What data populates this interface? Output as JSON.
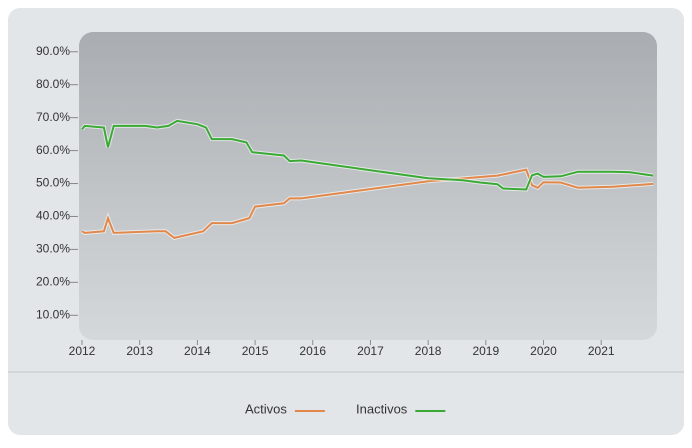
{
  "chart_data": {
    "type": "line",
    "xlim": [
      2012,
      2021.95
    ],
    "xticks": [
      2012,
      2013,
      2014,
      2015,
      2016,
      2017,
      2018,
      2019,
      2020,
      2021
    ],
    "ylim": [
      2.5,
      96
    ],
    "yticks": [
      {
        "value": 10,
        "label": "10.0%"
      },
      {
        "value": 20,
        "label": "20.0%"
      },
      {
        "value": 30,
        "label": "30.0%"
      },
      {
        "value": 40,
        "label": "40.0%"
      },
      {
        "value": 50,
        "label": "50.0%"
      },
      {
        "value": 60,
        "label": "60.0%"
      },
      {
        "value": 70,
        "label": "70.0%"
      },
      {
        "value": 80,
        "label": "80.0%"
      },
      {
        "value": 90,
        "label": "90.0%"
      }
    ],
    "legend": "bottom",
    "series": [
      {
        "name": "Activos",
        "color": "#e2884a",
        "x": [
          2012,
          2012.05,
          2012.38,
          2012.45,
          2012.55,
          2013.3,
          2013.45,
          2013.6,
          2014.1,
          2014.25,
          2014.6,
          2014.9,
          2015.0,
          2015.5,
          2015.6,
          2015.8,
          2018.0,
          2019.2,
          2019.7,
          2019.8,
          2019.9,
          2020.0,
          2020.3,
          2020.6,
          2021.2,
          2021.9
        ],
        "values": [
          35.5,
          35,
          35.5,
          39.5,
          35,
          35.5,
          35.5,
          33.5,
          35.5,
          38,
          38,
          39.5,
          43,
          44,
          45.5,
          45.5,
          50.7,
          52.4,
          54.2,
          49.5,
          48.7,
          50.4,
          50.3,
          48.7,
          49,
          49.9
        ]
      },
      {
        "name": "Inactivos",
        "color": "#3aaa35",
        "x": [
          2012,
          2012.05,
          2012.38,
          2012.45,
          2012.55,
          2013.1,
          2013.3,
          2013.5,
          2013.65,
          2014.0,
          2014.15,
          2014.25,
          2014.6,
          2014.85,
          2014.95,
          2015.5,
          2015.6,
          2015.8,
          2018.0,
          2018.6,
          2018.9,
          2019.2,
          2019.3,
          2019.7,
          2019.8,
          2019.9,
          2020.0,
          2020.3,
          2020.6,
          2021.2,
          2021.5,
          2021.9
        ],
        "values": [
          66.5,
          67.5,
          67,
          61,
          67.5,
          67.5,
          67,
          67.5,
          69,
          68,
          67,
          63.5,
          63.5,
          62.5,
          59.5,
          58.5,
          56.8,
          57,
          51.6,
          51,
          50.3,
          49.8,
          48.5,
          48.2,
          52.5,
          53,
          52,
          52.2,
          53.6,
          53.6,
          53.4,
          52.4
        ]
      }
    ]
  }
}
